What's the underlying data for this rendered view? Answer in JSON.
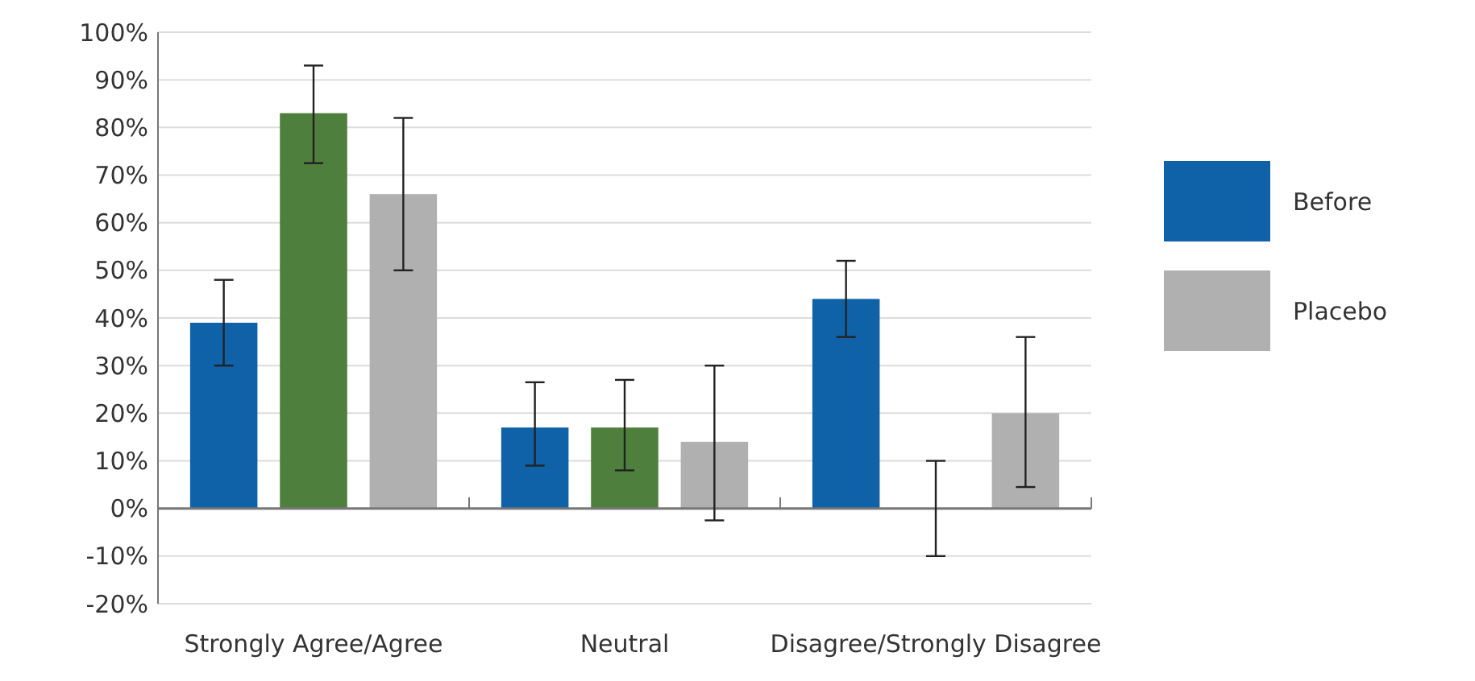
{
  "chart_data": {
    "type": "bar",
    "categories": [
      "Strongly Agree/Agree",
      "Neutral",
      "Disagree/Strongly Disagree"
    ],
    "series": [
      {
        "name": "Before",
        "color": "#0f62a8",
        "values": [
          39,
          17,
          44
        ],
        "errors": [
          [
            30,
            48
          ],
          [
            9,
            26.5
          ],
          [
            36,
            52
          ]
        ]
      },
      {
        "color": "#4f7f3c",
        "values": [
          83,
          17,
          0
        ],
        "errors": [
          [
            72.5,
            93
          ],
          [
            8,
            27
          ],
          [
            -10,
            10
          ]
        ]
      },
      {
        "name": "Placebo",
        "color": "#b0b0b0",
        "values": [
          66,
          14,
          20
        ],
        "errors": [
          [
            50,
            82
          ],
          [
            -2.5,
            30
          ],
          [
            4.5,
            36
          ]
        ]
      }
    ],
    "ylim": [
      -20,
      100
    ],
    "yticks": [
      {
        "value": -20,
        "label": "-20%"
      },
      {
        "value": -10,
        "label": "-10%"
      },
      {
        "value": 0,
        "label": "0%"
      },
      {
        "value": 10,
        "label": "10%"
      },
      {
        "value": 20,
        "label": "20%"
      },
      {
        "value": 30,
        "label": "30%"
      },
      {
        "value": 40,
        "label": "40%"
      },
      {
        "value": 50,
        "label": "50%"
      },
      {
        "value": 60,
        "label": "60%"
      },
      {
        "value": 70,
        "label": "70%"
      },
      {
        "value": 80,
        "label": "80%"
      },
      {
        "value": 90,
        "label": "90%"
      },
      {
        "value": 100,
        "label": "100%"
      }
    ],
    "grid": "y",
    "legend": "right"
  }
}
